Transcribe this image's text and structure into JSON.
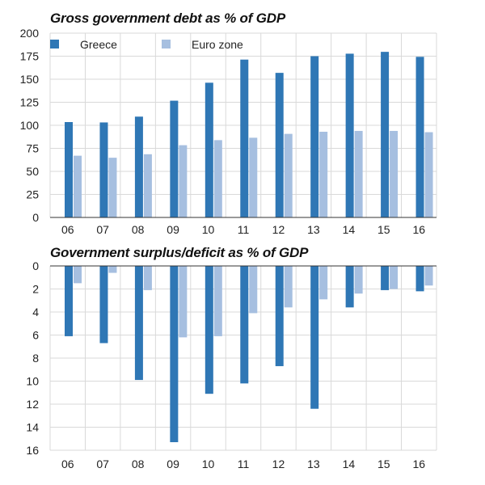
{
  "colors": {
    "greece": "#2f77b5",
    "euro_zone": "#a6bfe0",
    "grid": "#d9d9d9",
    "axis": "#333333"
  },
  "chart_data": [
    {
      "type": "bar",
      "title": "Gross government debt as % of GDP",
      "categories": [
        "06",
        "07",
        "08",
        "09",
        "10",
        "11",
        "12",
        "13",
        "14",
        "15",
        "16"
      ],
      "series": [
        {
          "name": "Greece",
          "values": [
            103.5,
            103.1,
            109.4,
            126.7,
            146.2,
            171.3,
            156.9,
            175.0,
            177.7,
            179.7,
            174.3
          ]
        },
        {
          "name": "Euro zone",
          "values": [
            67.0,
            64.8,
            68.6,
            78.4,
            83.9,
            86.5,
            90.7,
            93.0,
            93.9,
            93.9,
            92.5
          ]
        }
      ],
      "ylim": [
        0,
        200
      ],
      "yticks": [
        0,
        25,
        50,
        75,
        100,
        125,
        150,
        175,
        200
      ],
      "legend": "top-left",
      "xlabel": "",
      "ylabel": ""
    },
    {
      "type": "bar",
      "title": "Government surplus/deficit as % of GDP",
      "categories": [
        "06",
        "07",
        "08",
        "09",
        "10",
        "11",
        "12",
        "13",
        "14",
        "15",
        "16"
      ],
      "series": [
        {
          "name": "Greece",
          "values": [
            6.1,
            6.7,
            9.9,
            15.3,
            11.1,
            10.2,
            8.7,
            12.4,
            3.6,
            2.1,
            2.2
          ]
        },
        {
          "name": "Euro zone",
          "values": [
            1.5,
            0.6,
            2.1,
            6.2,
            6.1,
            4.1,
            3.6,
            2.9,
            2.4,
            2.0,
            1.7
          ]
        }
      ],
      "ylim": [
        0,
        16
      ],
      "yticks": [
        0,
        2,
        4,
        6,
        8,
        10,
        12,
        14,
        16
      ],
      "inverted_axis": true,
      "xlabel": "",
      "ylabel": ""
    }
  ]
}
